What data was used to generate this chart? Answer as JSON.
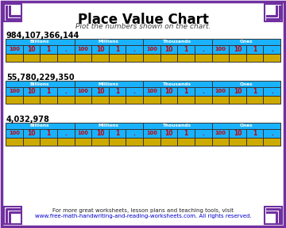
{
  "title": "Place Value Chart",
  "subtitle": "Plot the numbers shown on the chart.",
  "numbers": [
    "984,107,366,144",
    "55,780,229,350",
    "4,032,978"
  ],
  "groups": [
    "Billions",
    "Millions",
    "Thousands",
    "Ones"
  ],
  "cols_per_group": [
    "100",
    "10",
    "1",
    "."
  ],
  "bg_color": "#ffffff",
  "border_color": "#7030a0",
  "header_bg": "#1ab2ff",
  "header_text": "#ffffff",
  "cell_label_color": "#cc0000",
  "cell_bg_top": "#1ab2ff",
  "cell_bg_bot": "#ccaa00",
  "footer_text": "For more great worksheets, lesson plans and teaching tools, visit",
  "footer_link": "www.free-math-handwriting-and-reading-worksheets.com",
  "footer_suffix": ". All rights reserved.",
  "footer_color": "#222222",
  "footer_link_color": "#0000cc",
  "title_color": "#000000",
  "number_label_color": "#000000",
  "corner_color": "#7030a0"
}
